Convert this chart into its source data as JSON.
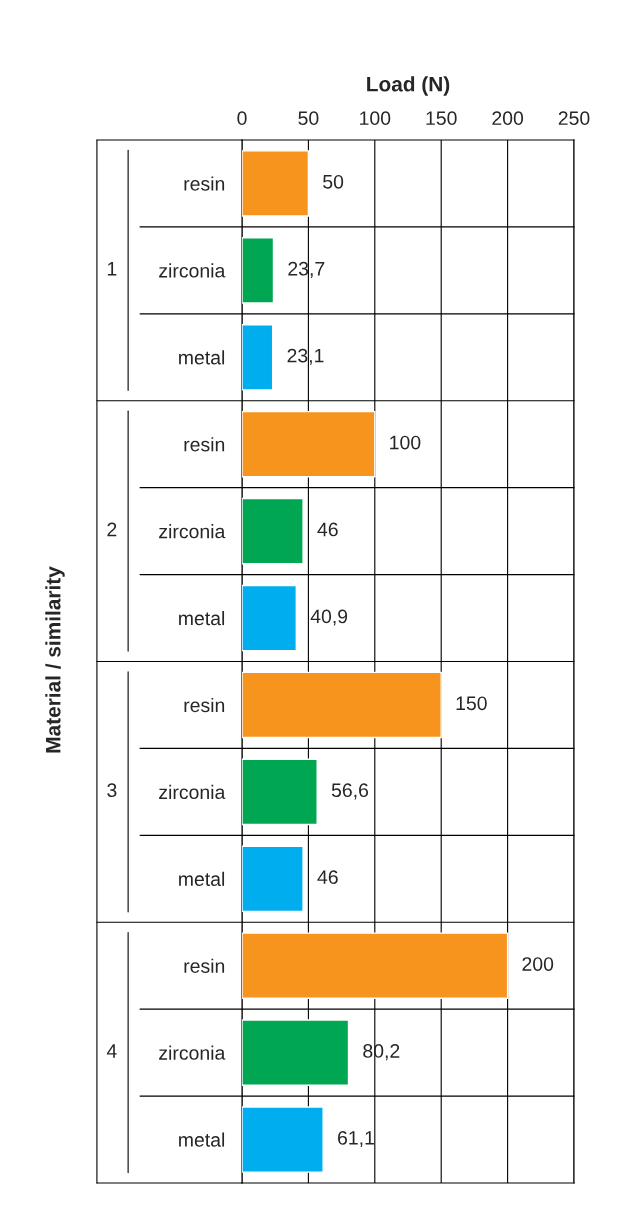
{
  "chart_data": {
    "type": "bar",
    "orientation": "horizontal",
    "xlabel": "Load (N)",
    "ylabel": "Material / similarity",
    "categories": [
      "resin",
      "zirconia",
      "metal",
      "resin",
      "zirconia",
      "metal",
      "resin",
      "zirconia",
      "metal",
      "resin",
      "zirconia",
      "metal"
    ],
    "values": [
      50,
      23.7,
      23.1,
      100,
      46,
      40.9,
      150,
      56.6,
      46,
      200,
      80.2,
      61.1
    ],
    "colors": [
      "#f7941d",
      "#00a651",
      "#00aeef",
      "#f7941d",
      "#00a651",
      "#00aeef",
      "#f7941d",
      "#00a651",
      "#00aeef",
      "#f7941d",
      "#00a651",
      "#00aeef"
    ],
    "value_labels": [
      "50",
      "23,7",
      "23,1",
      "100",
      "46",
      "40,9",
      "150",
      "56,6",
      "46",
      "200",
      "80,2",
      "61,1"
    ],
    "annotations": [
      "1",
      "2",
      "3",
      "4"
    ],
    "xlim": [
      0,
      250
    ],
    "xticks": [
      0,
      50,
      100,
      150,
      200,
      250
    ],
    "grid": true,
    "legend": false
  }
}
